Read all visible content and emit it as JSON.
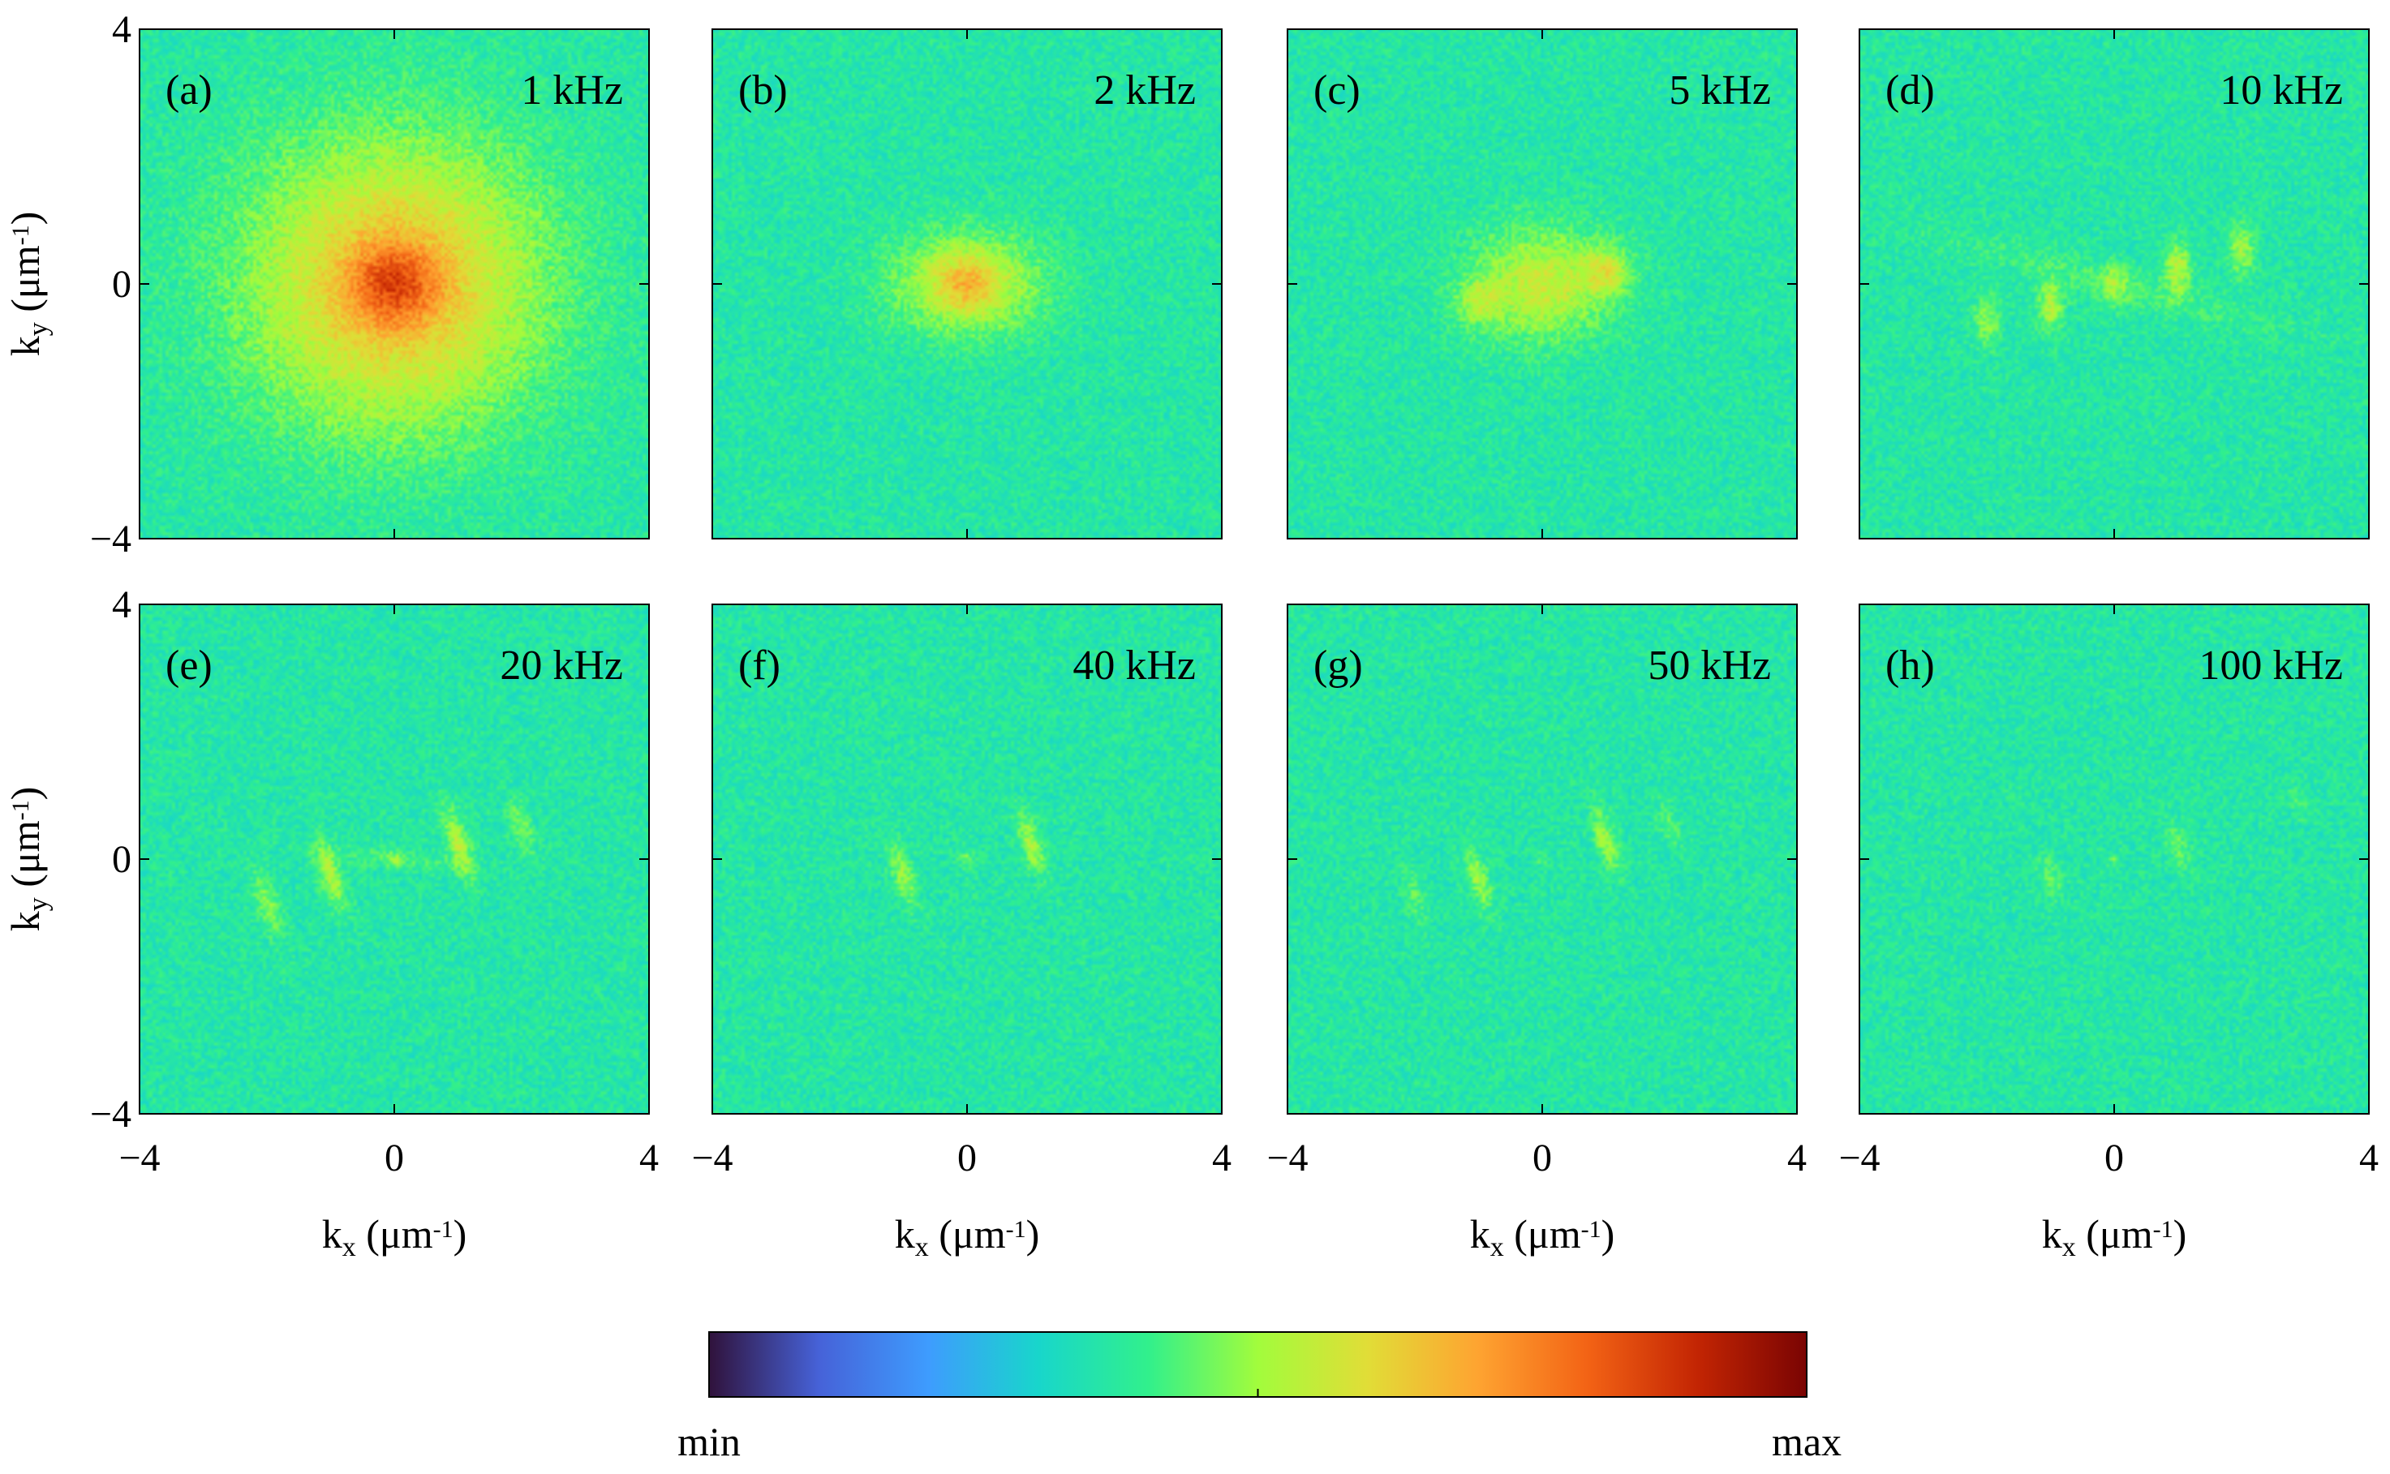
{
  "chart_data": {
    "type": "heatmap",
    "title": "",
    "colormap": "turbo",
    "colorbar": {
      "min_label": "min",
      "max_label": "max"
    },
    "x_axis": {
      "label_main": "k",
      "label_sub": "x",
      "label_unit": " (μm",
      "label_exp": "-1",
      "label_close": ")",
      "range": [
        -4,
        4
      ],
      "ticks": [
        -4,
        0,
        4
      ],
      "tick_labels": [
        "−4",
        "0",
        "4"
      ]
    },
    "y_axis": {
      "label_main": "k",
      "label_sub": "y",
      "label_unit": " (μm",
      "label_exp": "-1",
      "label_close": ")",
      "range": [
        -4,
        4
      ],
      "ticks": [
        4,
        0,
        -4
      ],
      "tick_labels": [
        "4",
        "0",
        "−4"
      ]
    },
    "panels": [
      {
        "tag": "(a)",
        "frequency": "1 kHz",
        "features": [
          {
            "kx": 0,
            "ky": 0,
            "sx": 1.6,
            "sy": 1.6,
            "amp": 0.3,
            "rot": 0
          },
          {
            "kx": 0,
            "ky": 0,
            "sx": 0.5,
            "sy": 0.45,
            "amp": 0.2,
            "rot": 0
          }
        ]
      },
      {
        "tag": "(b)",
        "frequency": "2 kHz",
        "features": [
          {
            "kx": 0,
            "ky": 0,
            "sx": 0.8,
            "sy": 0.55,
            "amp": 0.22,
            "rot": 0
          },
          {
            "kx": 0,
            "ky": 0,
            "sx": 0.3,
            "sy": 0.28,
            "amp": 0.1,
            "rot": 0
          }
        ]
      },
      {
        "tag": "(c)",
        "frequency": "5 kHz",
        "features": [
          {
            "kx": 0,
            "ky": 0,
            "sx": 0.75,
            "sy": 0.6,
            "amp": 0.2,
            "rot": 0
          },
          {
            "kx": 1.0,
            "ky": 0.2,
            "sx": 0.25,
            "sy": 0.25,
            "amp": 0.16,
            "rot": 0
          },
          {
            "kx": -1.0,
            "ky": -0.3,
            "sx": 0.25,
            "sy": 0.25,
            "amp": 0.12,
            "rot": 0
          }
        ]
      },
      {
        "tag": "(d)",
        "frequency": "10 kHz",
        "features": [
          {
            "kx": -2.0,
            "ky": -0.6,
            "sx": 0.14,
            "sy": 0.28,
            "amp": 0.12,
            "rot": 0
          },
          {
            "kx": -1.0,
            "ky": -0.35,
            "sx": 0.14,
            "sy": 0.28,
            "amp": 0.16,
            "rot": 0
          },
          {
            "kx": 0,
            "ky": 0,
            "sx": 0.14,
            "sy": 0.22,
            "amp": 0.12,
            "rot": 0
          },
          {
            "kx": 1.0,
            "ky": 0.25,
            "sx": 0.14,
            "sy": 0.28,
            "amp": 0.18,
            "rot": 0
          },
          {
            "kx": 2.0,
            "ky": 0.55,
            "sx": 0.14,
            "sy": 0.28,
            "amp": 0.15,
            "rot": 0
          },
          {
            "kx": 0,
            "ky": 0,
            "sx": 2.0,
            "sy": 0.22,
            "amp": 0.05,
            "rot": -0.27
          }
        ]
      },
      {
        "tag": "(e)",
        "frequency": "20 kHz",
        "features": [
          {
            "kx": -2.0,
            "ky": -0.7,
            "sx": 0.12,
            "sy": 0.35,
            "amp": 0.12,
            "rot": 0.3
          },
          {
            "kx": -1.0,
            "ky": -0.25,
            "sx": 0.12,
            "sy": 0.38,
            "amp": 0.17,
            "rot": 0.3
          },
          {
            "kx": 0,
            "ky": 0,
            "sx": 0.08,
            "sy": 0.08,
            "amp": 0.1,
            "rot": 0
          },
          {
            "kx": 1.0,
            "ky": 0.25,
            "sx": 0.12,
            "sy": 0.38,
            "amp": 0.18,
            "rot": 0.3
          },
          {
            "kx": 2.0,
            "ky": 0.5,
            "sx": 0.12,
            "sy": 0.3,
            "amp": 0.1,
            "rot": 0.3
          },
          {
            "kx": 0,
            "ky": 0,
            "sx": 0.9,
            "sy": 0.1,
            "amp": 0.05,
            "rot": -0.1
          }
        ]
      },
      {
        "tag": "(f)",
        "frequency": "40 kHz",
        "features": [
          {
            "kx": -1.0,
            "ky": -0.25,
            "sx": 0.11,
            "sy": 0.35,
            "amp": 0.14,
            "rot": 0.3
          },
          {
            "kx": 0,
            "ky": 0,
            "sx": 0.08,
            "sy": 0.08,
            "amp": 0.1,
            "rot": 0
          },
          {
            "kx": 1.0,
            "ky": 0.25,
            "sx": 0.11,
            "sy": 0.35,
            "amp": 0.15,
            "rot": 0.3
          }
        ]
      },
      {
        "tag": "(g)",
        "frequency": "50 kHz",
        "features": [
          {
            "kx": -2.0,
            "ky": -0.6,
            "sx": 0.1,
            "sy": 0.3,
            "amp": 0.07,
            "rot": 0.3
          },
          {
            "kx": -1.0,
            "ky": -0.3,
            "sx": 0.11,
            "sy": 0.35,
            "amp": 0.14,
            "rot": 0.3
          },
          {
            "kx": 0,
            "ky": 0,
            "sx": 0.07,
            "sy": 0.07,
            "amp": 0.08,
            "rot": 0
          },
          {
            "kx": 1.0,
            "ky": 0.3,
            "sx": 0.11,
            "sy": 0.35,
            "amp": 0.15,
            "rot": 0.3
          },
          {
            "kx": 2.0,
            "ky": 0.55,
            "sx": 0.1,
            "sy": 0.25,
            "amp": 0.07,
            "rot": 0.3
          }
        ]
      },
      {
        "tag": "(h)",
        "frequency": "100 kHz",
        "features": [
          {
            "kx": -1.0,
            "ky": -0.3,
            "sx": 0.12,
            "sy": 0.25,
            "amp": 0.08,
            "rot": 0.3
          },
          {
            "kx": 0,
            "ky": 0,
            "sx": 0.07,
            "sy": 0.07,
            "amp": 0.08,
            "rot": 0
          },
          {
            "kx": 1.0,
            "ky": 0.2,
            "sx": 0.12,
            "sy": 0.25,
            "amp": 0.08,
            "rot": 0.3
          },
          {
            "kx": 2.9,
            "ky": 0.9,
            "sx": 0.1,
            "sy": 0.2,
            "amp": 0.05,
            "rot": 0.3
          }
        ]
      }
    ]
  }
}
